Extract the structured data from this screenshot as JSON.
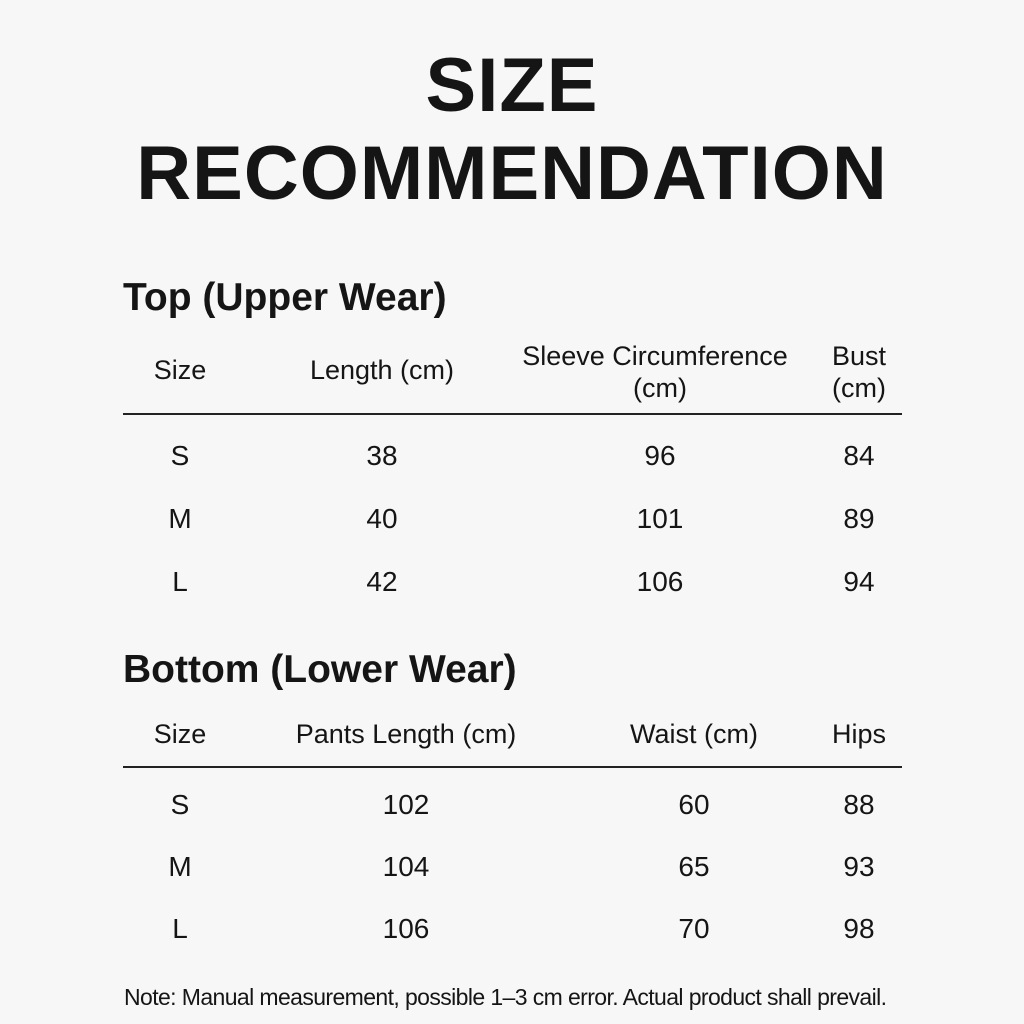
{
  "title": {
    "line1": "SIZE",
    "line2": "RECOMMENDATION"
  },
  "top": {
    "heading": "Top (Upper Wear)",
    "headers": [
      "Size",
      "Length (cm)",
      "Sleeve Circumference (cm)",
      "Bust (cm)"
    ],
    "header_lines": [
      [
        "Size"
      ],
      [
        "Length (cm)"
      ],
      [
        "Sleeve Circumference",
        "(cm)"
      ],
      [
        "Bust",
        "(cm)"
      ]
    ],
    "rows": [
      [
        "S",
        "38",
        "96",
        "84"
      ],
      [
        "M",
        "40",
        "101",
        "89"
      ],
      [
        "L",
        "42",
        "106",
        "94"
      ]
    ]
  },
  "bottom": {
    "heading": "Bottom (Lower Wear)",
    "headers": [
      "Size",
      "Pants Length (cm)",
      "Waist (cm)",
      "Hips"
    ],
    "rows": [
      [
        "S",
        "102",
        "60",
        "88"
      ],
      [
        "M",
        "104",
        "65",
        "93"
      ],
      [
        "L",
        "106",
        "70",
        "98"
      ]
    ]
  },
  "note": "Note: Manual measurement, possible 1–3 cm error. Actual product shall prevail."
}
